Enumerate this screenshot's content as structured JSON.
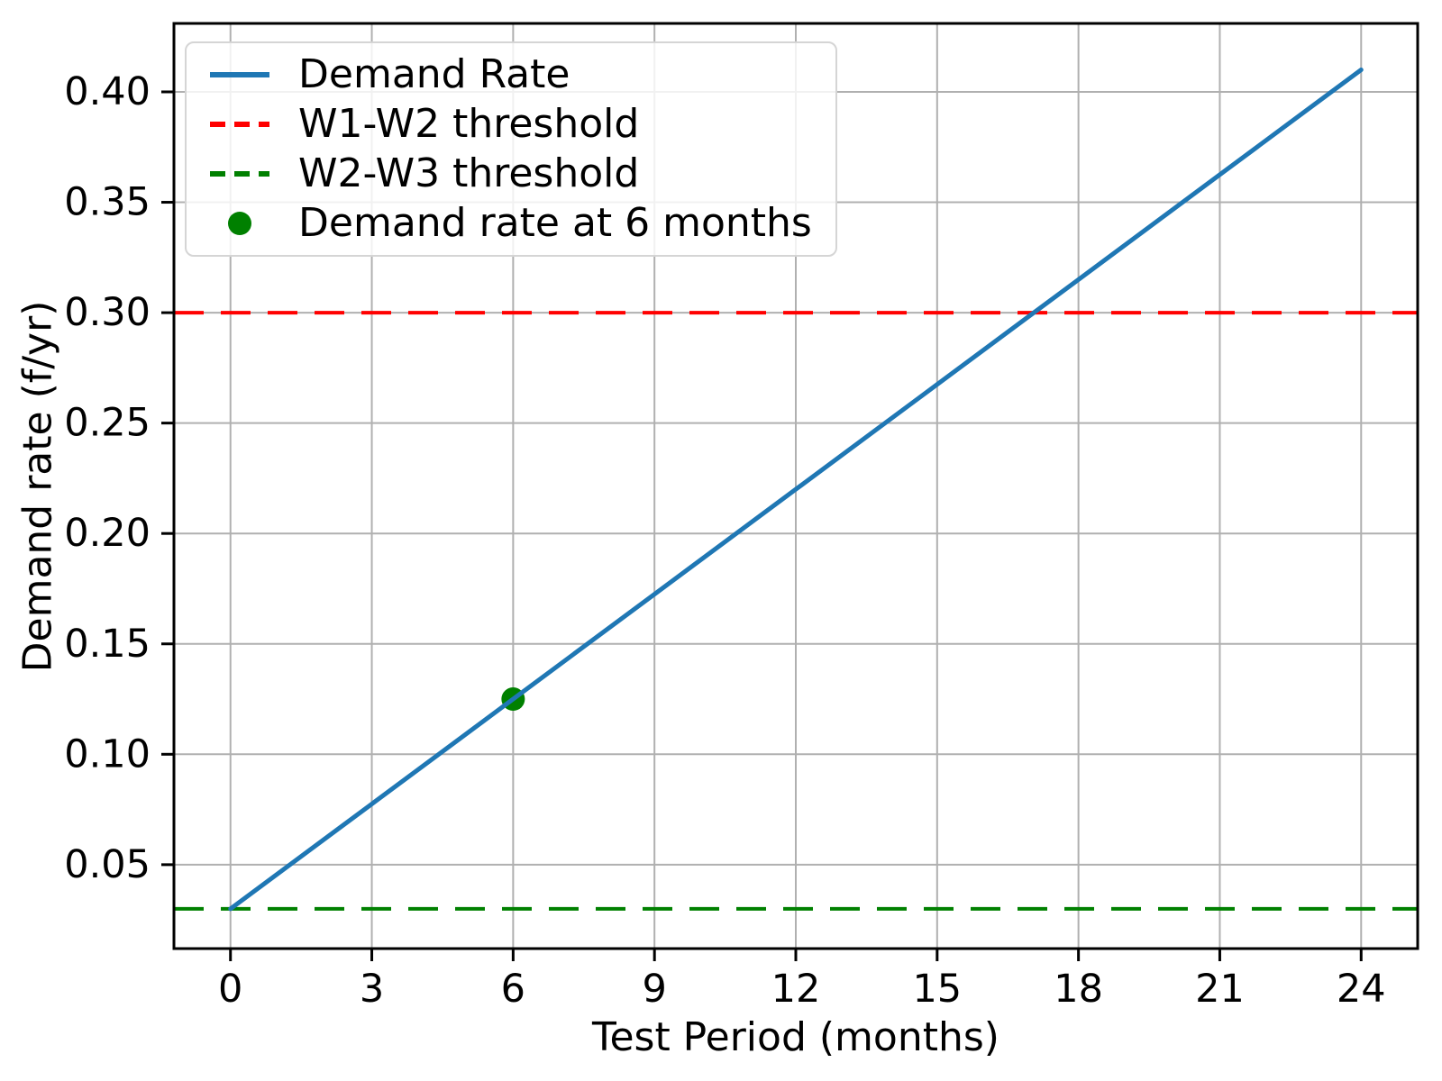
{
  "chart_data": {
    "type": "line",
    "title": "",
    "xlabel": "Test Period (months)",
    "ylabel": "Demand rate (f/yr)",
    "xlim": [
      -1.2,
      25.2
    ],
    "ylim": [
      0.012,
      0.431
    ],
    "xticks": [
      0,
      3,
      6,
      9,
      12,
      15,
      18,
      21,
      24
    ],
    "xtick_labels": [
      "0",
      "3",
      "6",
      "9",
      "12",
      "15",
      "18",
      "21",
      "24"
    ],
    "yticks": [
      0.05,
      0.1,
      0.15,
      0.2,
      0.25,
      0.3,
      0.35,
      0.4
    ],
    "ytick_labels": [
      "0.05",
      "0.10",
      "0.15",
      "0.20",
      "0.25",
      "0.30",
      "0.35",
      "0.40"
    ],
    "grid": true,
    "grid_color": "#b0b0b0",
    "frame_color": "#000000",
    "background": "#ffffff",
    "legend_position": "upper left",
    "series": [
      {
        "name": "Demand Rate",
        "type": "line",
        "style": "solid",
        "color": "#1f77b4",
        "x": [
          0,
          3,
          6,
          9,
          12,
          15,
          18,
          21,
          24
        ],
        "y": [
          0.03,
          0.0775,
          0.125,
          0.1725,
          0.22,
          0.2675,
          0.315,
          0.3625,
          0.41
        ]
      },
      {
        "name": "W1-W2 threshold",
        "type": "hline",
        "style": "dashed",
        "color": "#ff0000",
        "y": 0.3
      },
      {
        "name": "W2-W3 threshold",
        "type": "hline",
        "style": "dashed",
        "color": "#008000",
        "y": 0.03
      },
      {
        "name": "Demand rate at 6 months",
        "type": "point",
        "style": "dot",
        "color": "#008000",
        "x": 6,
        "y": 0.125
      }
    ]
  }
}
